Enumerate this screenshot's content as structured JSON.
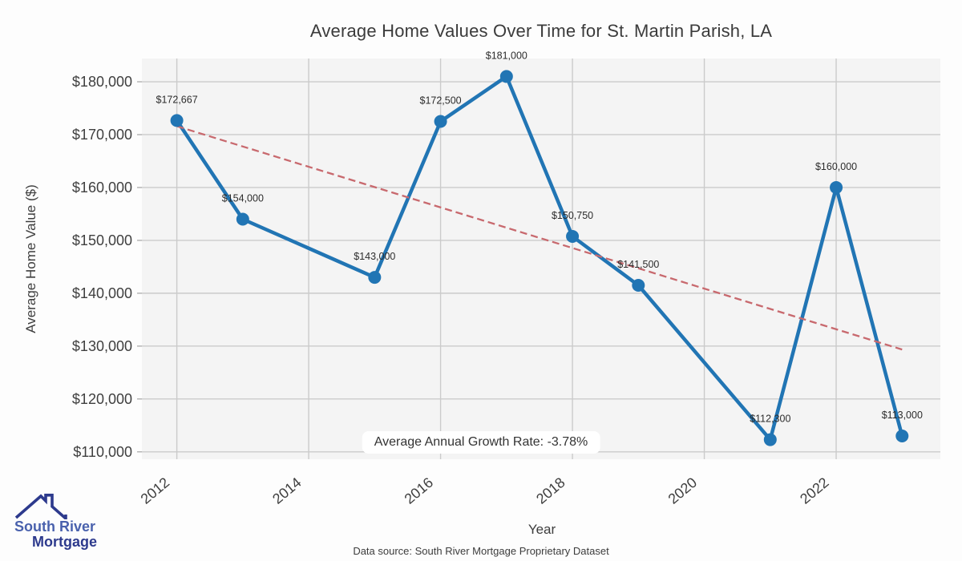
{
  "chart_data": {
    "type": "line",
    "title": "Average Home Values Over Time for St. Martin Parish, LA",
    "xlabel": "Year",
    "ylabel": "Average Home Value ($)",
    "x": [
      2012,
      2013,
      2015,
      2016,
      2017,
      2018,
      2019,
      2021,
      2022,
      2023
    ],
    "values": [
      172667,
      154000,
      143000,
      172500,
      181000,
      150750,
      141500,
      112300,
      160000,
      113000
    ],
    "point_labels": [
      "$172,667",
      "$154,000",
      "$143,000",
      "$172,500",
      "$181,000",
      "$150,750",
      "$141,500",
      "$112,300",
      "$160,000",
      "$113,000"
    ],
    "xticks": [
      2012,
      2014,
      2016,
      2018,
      2020,
      2022
    ],
    "xtick_labels": [
      "2012",
      "2014",
      "2016",
      "2018",
      "2020",
      "2022"
    ],
    "yticks": [
      110000,
      120000,
      130000,
      140000,
      150000,
      160000,
      170000,
      180000
    ],
    "ytick_labels": [
      "$110,000",
      "$120,000",
      "$130,000",
      "$140,000",
      "$150,000",
      "$160,000",
      "$170,000",
      "$180,000"
    ],
    "xlim": [
      2011.47,
      2023.58
    ],
    "ylim": [
      108600,
      184400
    ],
    "grid": true,
    "legend": "none",
    "trend": {
      "style": "dashed",
      "x": [
        2012,
        2023
      ],
      "values": [
        171600,
        129350
      ]
    },
    "annotation": "Average Annual Growth Rate: -3.78%"
  },
  "colors": {
    "line": "#2175b4",
    "marker": "#2175b4",
    "trend": "#c8696e",
    "plot_bg": "#f4f4f4",
    "grid": "#cbcbcb",
    "tick": "#b5b5b5",
    "tick_label": "#3f3f3f",
    "data_label": "#2c2c2c",
    "logo_primary": "#4961ad",
    "logo_secondary": "#2d3a8d"
  },
  "footer": {
    "source": "Data source: South River Mortgage Proprietary Dataset"
  },
  "logo": {
    "line1": "South River",
    "line2": "Mortgage"
  }
}
